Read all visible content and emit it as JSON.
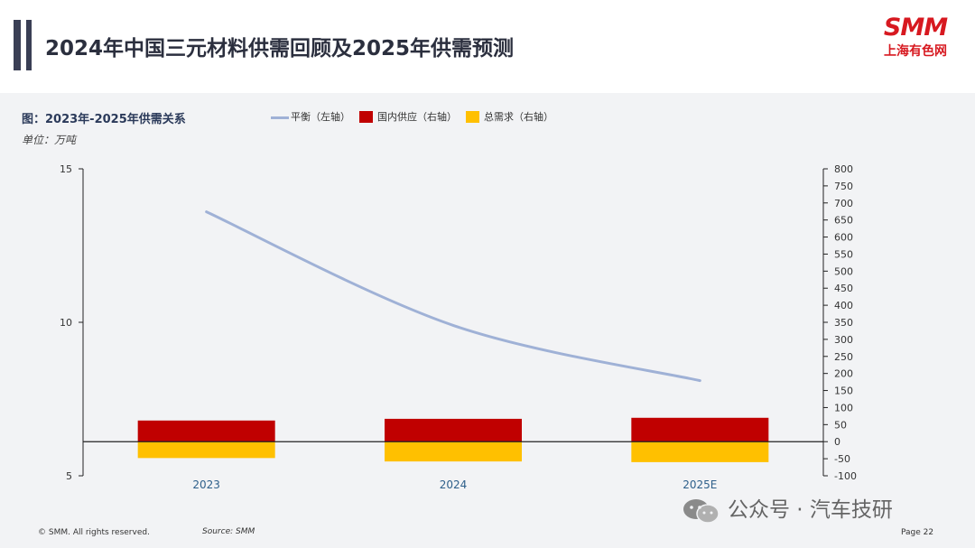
{
  "header": {
    "title": "2024年中国三元材料供需回顾及2025年供需预测",
    "logo_text": "SMM",
    "logo_subtitle": "上海有色网",
    "brand_color": "#d71920"
  },
  "figure": {
    "title": "图：2023年-2025年供需关系",
    "unit": "单位：万吨"
  },
  "legend": [
    {
      "label": "平衡（左轴）",
      "kind": "line",
      "color": "#9fb1d6"
    },
    {
      "label": "国内供应（右轴）",
      "kind": "box",
      "color": "#c00000"
    },
    {
      "label": "总需求（右轴）",
      "kind": "box",
      "color": "#ffc000"
    }
  ],
  "chart_data": {
    "type": "bar",
    "categories": [
      "2023",
      "2024",
      "2025E"
    ],
    "series": [
      {
        "name": "平衡（左轴）",
        "type": "line",
        "axis": "left",
        "color": "#9fb1d6",
        "values": [
          13.6,
          9.9,
          8.1
        ]
      },
      {
        "name": "国内供应（右轴）",
        "type": "bar",
        "axis": "right",
        "color": "#c00000",
        "values": [
          62,
          67,
          70
        ]
      },
      {
        "name": "总需求（右轴）",
        "type": "bar",
        "axis": "right",
        "color": "#ffc000",
        "values": [
          -48,
          -58,
          -60
        ]
      }
    ],
    "y_left": {
      "min": 5,
      "max": 15,
      "ticks": [
        "5",
        "10",
        "15"
      ]
    },
    "y_right": {
      "min": -100,
      "max": 800,
      "ticks": [
        "-100",
        "-50",
        "0",
        "50",
        "100",
        "150",
        "200",
        "250",
        "300",
        "350",
        "400",
        "450",
        "500",
        "550",
        "600",
        "650",
        "700",
        "750",
        "800"
      ]
    },
    "grid": false,
    "legend_position": "top"
  },
  "footer": {
    "copyright": "© SMM. All rights reserved.",
    "source": "Source: SMM",
    "page": "Page 22"
  },
  "watermark": {
    "text": "公众号 · 汽车技研",
    "icon": "wechat-icon"
  }
}
